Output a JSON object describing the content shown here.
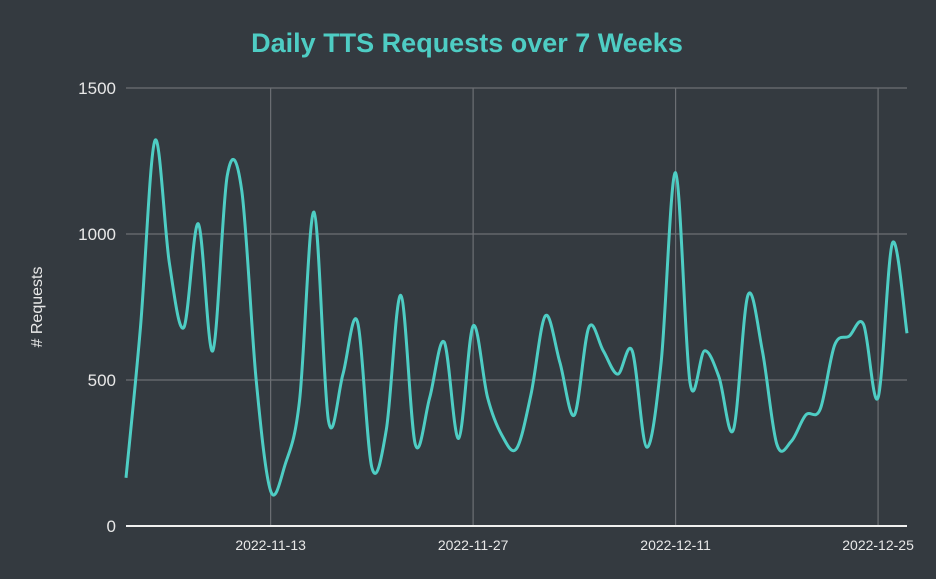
{
  "chart_data": {
    "type": "line",
    "title": "Daily TTS Requests over 7 Weeks",
    "xlabel": "",
    "ylabel": "# Requests",
    "ylim": [
      0,
      1500
    ],
    "xlim": [
      "2022-11-03",
      "2022-12-27"
    ],
    "yticks": [
      "0",
      "500",
      "1000",
      "1500"
    ],
    "xticks": [
      "2022-11-13",
      "2022-11-27",
      "2022-12-11",
      "2022-12-25"
    ],
    "grid": true,
    "line_color": "#4ecdc4",
    "background": "#343a40",
    "x": [
      "2022-11-03",
      "2022-11-04",
      "2022-11-05",
      "2022-11-06",
      "2022-11-07",
      "2022-11-08",
      "2022-11-09",
      "2022-11-10",
      "2022-11-11",
      "2022-11-12",
      "2022-11-13",
      "2022-11-14",
      "2022-11-15",
      "2022-11-16",
      "2022-11-17",
      "2022-11-18",
      "2022-11-19",
      "2022-11-20",
      "2022-11-21",
      "2022-11-22",
      "2022-11-23",
      "2022-11-24",
      "2022-11-25",
      "2022-11-26",
      "2022-11-27",
      "2022-11-28",
      "2022-11-29",
      "2022-11-30",
      "2022-12-01",
      "2022-12-02",
      "2022-12-03",
      "2022-12-04",
      "2022-12-05",
      "2022-12-06",
      "2022-12-07",
      "2022-12-08",
      "2022-12-09",
      "2022-12-10",
      "2022-12-11",
      "2022-12-12",
      "2022-12-13",
      "2022-12-14",
      "2022-12-15",
      "2022-12-16",
      "2022-12-17",
      "2022-12-18",
      "2022-12-19",
      "2022-12-20",
      "2022-12-21",
      "2022-12-22",
      "2022-12-23",
      "2022-12-24",
      "2022-12-25",
      "2022-12-26",
      "2022-12-27"
    ],
    "values": [
      165,
      680,
      1320,
      900,
      680,
      1035,
      600,
      1200,
      1150,
      500,
      120,
      210,
      430,
      1075,
      360,
      520,
      700,
      200,
      330,
      790,
      280,
      440,
      630,
      300,
      685,
      440,
      310,
      265,
      450,
      720,
      560,
      380,
      680,
      600,
      520,
      600,
      270,
      560,
      1210,
      490,
      600,
      510,
      330,
      790,
      600,
      280,
      290,
      380,
      400,
      620,
      650,
      690,
      440,
      970,
      660
    ]
  }
}
